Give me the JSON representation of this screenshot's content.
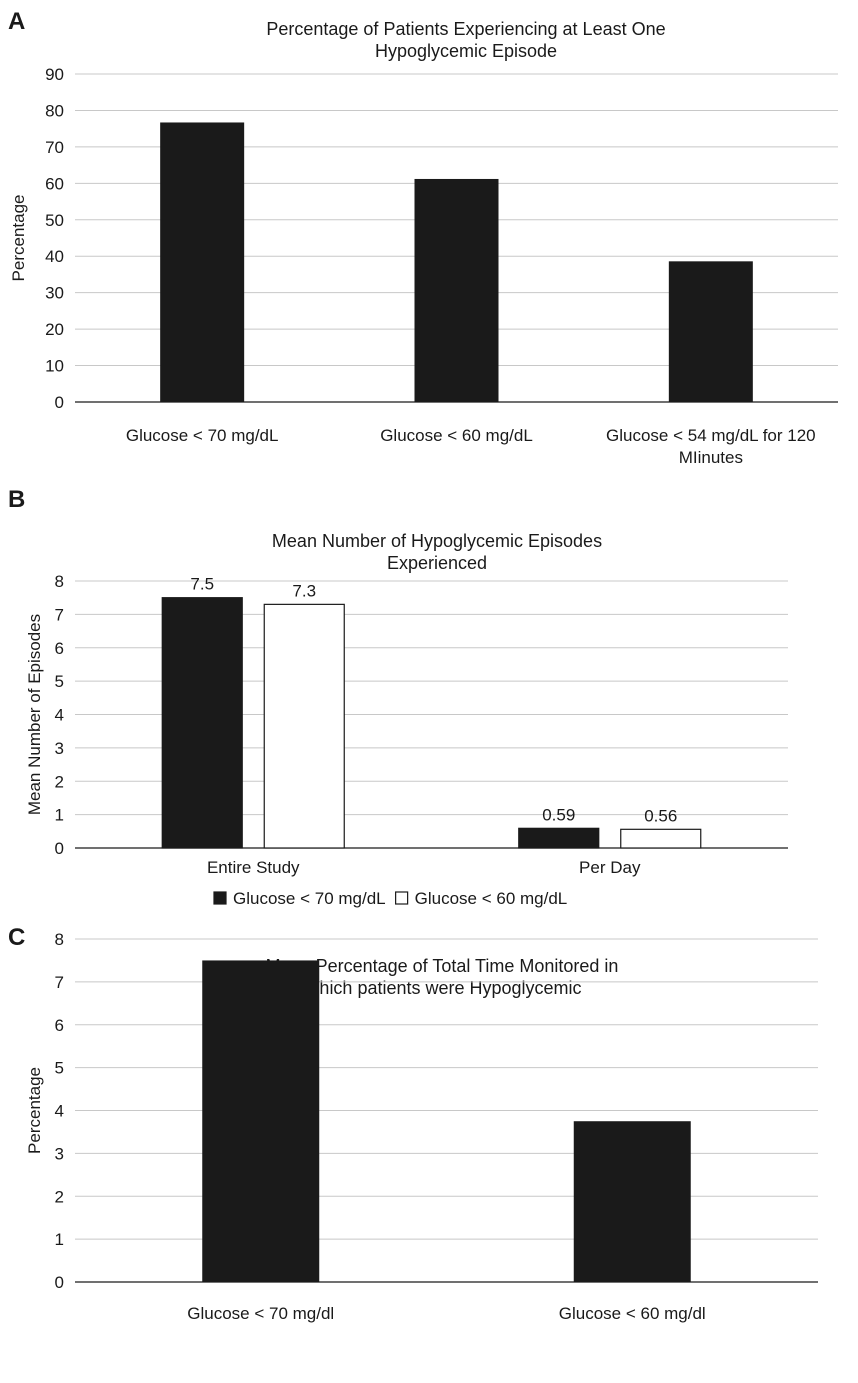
{
  "chart_data": [
    {
      "panel_label": "A",
      "type": "bar",
      "title": "Percentage of Patients Experiencing at Least One Hypoglycemic Episode",
      "title_lines": [
        "Percentage of Patients Experiencing at Least One",
        "Hypoglycemic Episode"
      ],
      "xlabel": "",
      "ylabel": "Percentage",
      "categories": [
        "Glucose < 70 mg/dL",
        "Glucose < 60 mg/dL",
        "Glucose < 54 mg/dL for 120 MIinutes"
      ],
      "category_lines": [
        [
          "Glucose < 70 mg/dL"
        ],
        [
          "Glucose < 60 mg/dL"
        ],
        [
          "Glucose < 54 mg/dL for 120",
          "MIinutes"
        ]
      ],
      "values": [
        76.7,
        61.2,
        38.6
      ],
      "ylim": [
        0,
        90
      ],
      "yticks": [
        0,
        10,
        20,
        30,
        40,
        50,
        60,
        70,
        80,
        90
      ],
      "grid": true,
      "bar_color": "#1a1a1a"
    },
    {
      "panel_label": "B",
      "type": "bar",
      "title": "Mean Number of Hypoglycemic Episodes Experienced",
      "title_lines": [
        "Mean Number of Hypoglycemic Episodes",
        "Experienced"
      ],
      "xlabel": "",
      "ylabel": "Mean Number of Episodes",
      "categories": [
        "Entire Study",
        "Per Day"
      ],
      "series": [
        {
          "name": "Glucose < 70 mg/dL",
          "values": [
            7.5,
            0.59
          ],
          "labels": [
            "7.5",
            "0.59"
          ],
          "color": "#1a1a1a"
        },
        {
          "name": "Glucose < 60 mg/dL",
          "values": [
            7.3,
            0.56
          ],
          "labels": [
            "7.3",
            "0.56"
          ],
          "color": "#ffffff"
        }
      ],
      "ylim": [
        0,
        8
      ],
      "yticks": [
        0,
        1,
        2,
        3,
        4,
        5,
        6,
        7,
        8
      ],
      "grid": true,
      "legend_position": "bottom"
    },
    {
      "panel_label": "C",
      "type": "bar",
      "title": "Mean Percentage of Total Time Monitored in Which patients were Hypoglycemic",
      "title_lines": [
        "Mean Percentage of Total Time Monitored in",
        "Which patients were Hypoglycemic"
      ],
      "xlabel": "",
      "ylabel": "Percentage",
      "categories": [
        "Glucose < 70 mg/dl",
        "Glucose < 60 mg/dl"
      ],
      "values": [
        7.5,
        3.75
      ],
      "ylim": [
        0,
        8
      ],
      "yticks": [
        0,
        1,
        2,
        3,
        4,
        5,
        6,
        7,
        8
      ],
      "grid": true,
      "bar_color": "#1a1a1a"
    }
  ]
}
